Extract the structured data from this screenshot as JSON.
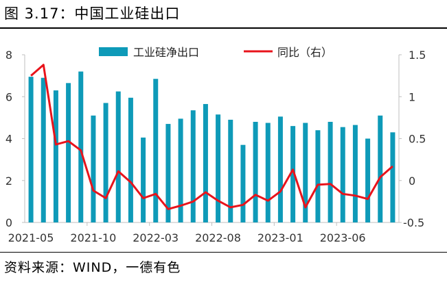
{
  "title": "图 3.17：中国工业硅出口",
  "source": "资料来源：WIND，一德有色",
  "colors": {
    "bar": "#0e9ab8",
    "line": "#e8131b",
    "axis": "#bfbfbf"
  },
  "chart_data": {
    "type": "bar",
    "title": "中国工业硅出口",
    "x_labels": [
      "2021-05",
      "2021-10",
      "2022-03",
      "2022-08",
      "2023-01",
      "2023-06"
    ],
    "x_label_start_index": [
      0,
      5,
      10,
      15,
      20,
      25
    ],
    "left_axis": {
      "ylim": [
        0,
        8
      ],
      "ticks": [
        "0",
        "2",
        "4",
        "6",
        "8"
      ]
    },
    "right_axis": {
      "ylim": [
        -0.5,
        1.5
      ],
      "ticks": [
        "-0.5",
        "0",
        "0.5",
        "1",
        "1.5"
      ]
    },
    "legend": {
      "placement": "top-center"
    },
    "series": [
      {
        "name": "工业硅净出口",
        "type": "bar",
        "axis": "left",
        "values": [
          6.95,
          6.9,
          6.3,
          6.65,
          7.2,
          5.1,
          5.7,
          6.25,
          5.95,
          4.05,
          6.85,
          4.7,
          4.95,
          5.35,
          5.65,
          5.15,
          4.9,
          3.7,
          4.8,
          4.75,
          5.05,
          4.6,
          4.75,
          4.4,
          4.8,
          4.55,
          4.65,
          4.0,
          5.1,
          4.3
        ]
      },
      {
        "name": "同比（右）",
        "type": "line",
        "axis": "right",
        "values": [
          1.25,
          1.38,
          0.43,
          0.47,
          0.36,
          -0.12,
          -0.21,
          0.11,
          -0.02,
          -0.21,
          -0.16,
          -0.34,
          -0.3,
          -0.25,
          -0.14,
          -0.24,
          -0.32,
          -0.29,
          -0.17,
          -0.24,
          -0.13,
          0.13,
          -0.32,
          -0.05,
          -0.04,
          -0.16,
          -0.18,
          -0.22,
          0.04,
          0.17
        ]
      }
    ]
  }
}
